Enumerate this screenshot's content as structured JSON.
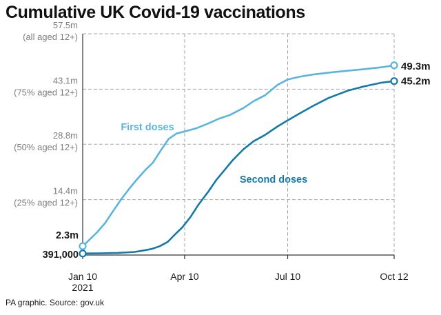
{
  "chart_data": {
    "type": "line",
    "title": "Cumulative UK Covid-19 vaccinations",
    "source": "PA graphic. Source: gov.uk",
    "x_ticks": [
      {
        "date": "2021-01-10",
        "label": "Jan 10",
        "sublabel": "2021"
      },
      {
        "date": "2021-04-10",
        "label": "Apr 10",
        "sublabel": ""
      },
      {
        "date": "2021-07-10",
        "label": "Jul 10",
        "sublabel": ""
      },
      {
        "date": "2021-10-12",
        "label": "Oct 12",
        "sublabel": ""
      }
    ],
    "y_ticks": [
      {
        "value": 14.4,
        "label": "14.4m",
        "sublabel": "(25% aged 12+)"
      },
      {
        "value": 28.8,
        "label": "28.8m",
        "sublabel": "(50% aged 12+)"
      },
      {
        "value": 43.1,
        "label": "43.1m",
        "sublabel": "(75% aged 12+)"
      },
      {
        "value": 57.5,
        "label": "57.5m",
        "sublabel": "(all aged 12+)"
      }
    ],
    "ylim": [
      0,
      57.5
    ],
    "xlim": [
      "2021-01-10",
      "2021-10-12"
    ],
    "grid": true,
    "series": [
      {
        "name": "First doses",
        "color": "#5ab4de",
        "start_label": "2.3m",
        "end_label": "49.3m",
        "points": [
          [
            "2021-01-10",
            2.3
          ],
          [
            "2021-01-16",
            4.0
          ],
          [
            "2021-01-23",
            6.0
          ],
          [
            "2021-01-30",
            8.4
          ],
          [
            "2021-02-06",
            11.5
          ],
          [
            "2021-02-13",
            14.5
          ],
          [
            "2021-02-20",
            17.2
          ],
          [
            "2021-02-27",
            19.7
          ],
          [
            "2021-03-06",
            22.0
          ],
          [
            "2021-03-13",
            24.0
          ],
          [
            "2021-03-20",
            27.2
          ],
          [
            "2021-03-27",
            30.2
          ],
          [
            "2021-04-03",
            31.6
          ],
          [
            "2021-04-10",
            32.1
          ],
          [
            "2021-04-20",
            32.9
          ],
          [
            "2021-05-01",
            34.2
          ],
          [
            "2021-05-10",
            35.4
          ],
          [
            "2021-05-20",
            36.4
          ],
          [
            "2021-06-01",
            38.2
          ],
          [
            "2021-06-10",
            40.0
          ],
          [
            "2021-06-20",
            41.5
          ],
          [
            "2021-07-01",
            44.2
          ],
          [
            "2021-07-10",
            45.6
          ],
          [
            "2021-07-20",
            46.3
          ],
          [
            "2021-08-01",
            46.9
          ],
          [
            "2021-08-15",
            47.4
          ],
          [
            "2021-09-01",
            47.9
          ],
          [
            "2021-09-15",
            48.3
          ],
          [
            "2021-10-01",
            48.8
          ],
          [
            "2021-10-12",
            49.3
          ]
        ]
      },
      {
        "name": "Second doses",
        "color": "#1379a9",
        "start_label": "391,000",
        "end_label": "45.2m",
        "points": [
          [
            "2021-01-10",
            0.391
          ],
          [
            "2021-01-25",
            0.45
          ],
          [
            "2021-02-10",
            0.55
          ],
          [
            "2021-02-25",
            0.8
          ],
          [
            "2021-03-05",
            1.2
          ],
          [
            "2021-03-12",
            1.6
          ],
          [
            "2021-03-19",
            2.3
          ],
          [
            "2021-03-26",
            3.4
          ],
          [
            "2021-04-01",
            5.2
          ],
          [
            "2021-04-08",
            7.2
          ],
          [
            "2021-04-15",
            9.8
          ],
          [
            "2021-04-22",
            13.0
          ],
          [
            "2021-05-01",
            16.5
          ],
          [
            "2021-05-08",
            19.5
          ],
          [
            "2021-05-15",
            22.0
          ],
          [
            "2021-05-22",
            24.5
          ],
          [
            "2021-06-01",
            27.5
          ],
          [
            "2021-06-10",
            29.6
          ],
          [
            "2021-06-20",
            31.2
          ],
          [
            "2021-07-01",
            33.4
          ],
          [
            "2021-07-10",
            35.0
          ],
          [
            "2021-07-20",
            36.7
          ],
          [
            "2021-08-01",
            38.7
          ],
          [
            "2021-08-15",
            40.8
          ],
          [
            "2021-09-01",
            42.7
          ],
          [
            "2021-09-15",
            43.8
          ],
          [
            "2021-10-01",
            44.8
          ],
          [
            "2021-10-12",
            45.2
          ]
        ]
      }
    ]
  }
}
